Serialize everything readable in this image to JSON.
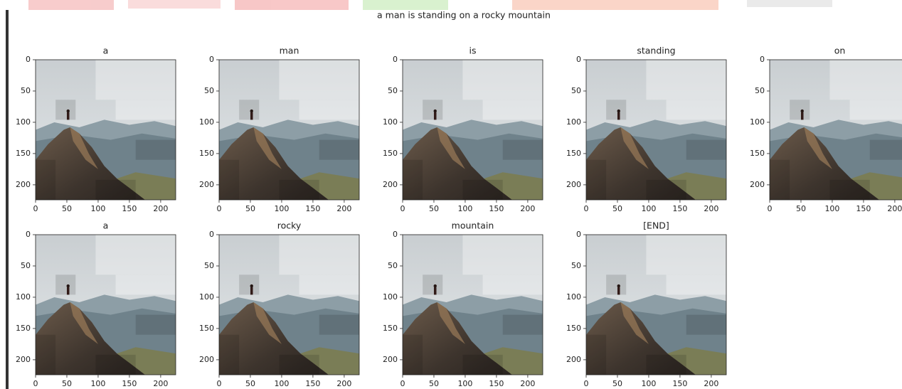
{
  "title": "a man is standing on a rocky mountain",
  "panels": [
    {
      "title": "a"
    },
    {
      "title": "man"
    },
    {
      "title": "is"
    },
    {
      "title": "standing"
    },
    {
      "title": "on"
    },
    {
      "title": "a"
    },
    {
      "title": "rocky"
    },
    {
      "title": "mountain"
    },
    {
      "title": "[END]"
    }
  ],
  "xticks": [
    0,
    50,
    100,
    150,
    200
  ],
  "yticks": [
    0,
    50,
    100,
    150,
    200
  ],
  "xlim": [
    0,
    224
  ],
  "ylim": [
    0,
    224
  ]
}
